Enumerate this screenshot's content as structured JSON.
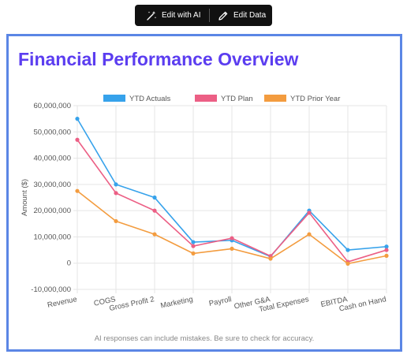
{
  "toolbar": {
    "edit_ai_label": "Edit with AI",
    "edit_data_label": "Edit Data"
  },
  "footer": {
    "disclaimer": "AI responses can include mistakes. Be sure to check for accuracy."
  },
  "colors": {
    "title": "#5b3df0",
    "frame": "#5b86e5"
  },
  "chart_data": {
    "type": "line",
    "title": "Financial Performance Overview",
    "xlabel": "",
    "ylabel": "Amount ($)",
    "categories": [
      "Revenue",
      "COGS",
      "Gross Profit 2",
      "Marketing",
      "Payroll",
      "Other G&A",
      "Total Expenses",
      "EBITDA",
      "Cash on Hand"
    ],
    "ylim": [
      -10000000,
      60000000
    ],
    "yticks": [
      -10000000,
      0,
      10000000,
      20000000,
      30000000,
      40000000,
      50000000,
      60000000
    ],
    "ytick_labels": [
      "-10,000,000",
      "0",
      "10,000,000",
      "20,000,000",
      "30,000,000",
      "40,000,000",
      "50,000,000",
      "60,000,000"
    ],
    "grid": true,
    "legend_position": "top",
    "series": [
      {
        "name": "YTD Actuals",
        "color": "#36a2eb",
        "values": [
          55000000,
          30000000,
          25000000,
          8000000,
          8700000,
          2500000,
          20000000,
          5000000,
          6300000
        ]
      },
      {
        "name": "YTD Plan",
        "color": "#ec5f85",
        "values": [
          47000000,
          26700000,
          20000000,
          6500000,
          9500000,
          2700000,
          19200000,
          500000,
          5000000
        ]
      },
      {
        "name": "YTD Prior Year",
        "color": "#f39c3f",
        "values": [
          27500000,
          16000000,
          11000000,
          3700000,
          5500000,
          1700000,
          11000000,
          -200000,
          2800000
        ]
      }
    ]
  }
}
